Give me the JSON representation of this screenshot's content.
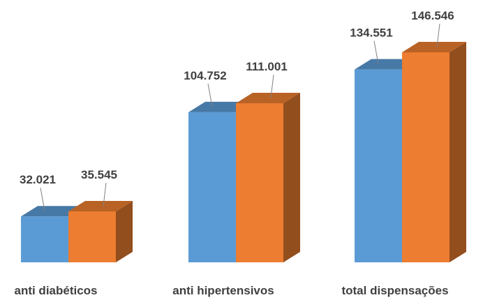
{
  "chart_data": {
    "type": "bar",
    "style": "3d-clustered-column",
    "categories": [
      "anti diabéticos",
      "anti hipertensivos",
      "total dispensações"
    ],
    "series": [
      {
        "color": "#5B9BD5",
        "values": [
          32021,
          104752,
          134551
        ],
        "labels": [
          "32.021",
          "104.752",
          "134.551"
        ]
      },
      {
        "color": "#ED7D31",
        "values": [
          35545,
          111001,
          146546
        ],
        "labels": [
          "35.545",
          "111.001",
          "146.546"
        ]
      }
    ],
    "title": "",
    "xlabel": "",
    "ylabel": "",
    "ylim": [
      0,
      160000
    ],
    "grid": false,
    "legend": "none"
  }
}
